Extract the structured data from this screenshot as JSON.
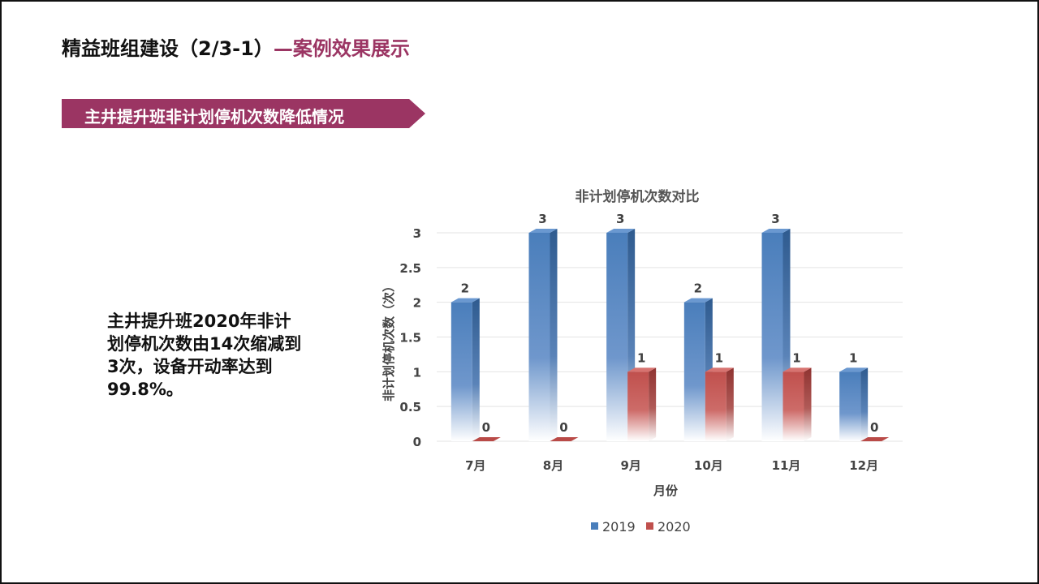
{
  "header": {
    "title_main": "精益班组建设（2/3-1）",
    "title_accent": "—案例效果展示"
  },
  "section": {
    "banner_label": "主井提升班非计划停机次数降低情况"
  },
  "summary": {
    "text": " 主井提升班2020年非计\n划停机次数由14次缩减到\n3次，设备开动率达到\n99.8%。"
  },
  "colors": {
    "accent": "#9b3563",
    "series_2019": "#4a7ebb",
    "series_2020": "#c0504d"
  },
  "chart_data": {
    "type": "bar",
    "title": "非计划停机次数对比",
    "xlabel": "月份",
    "ylabel": "非计划停机次数（次）",
    "categories": [
      "7月",
      "8月",
      "9月",
      "10月",
      "11月",
      "12月"
    ],
    "series": [
      {
        "name": "2019",
        "values": [
          2,
          3,
          3,
          2,
          3,
          1
        ]
      },
      {
        "name": "2020",
        "values": [
          0,
          0,
          1,
          1,
          1,
          0
        ]
      }
    ],
    "ylim": [
      0,
      3
    ],
    "yticks": [
      "0",
      "0.5",
      "1",
      "1.5",
      "2",
      "2.5",
      "3"
    ],
    "grid": true,
    "legend": "bottom"
  }
}
